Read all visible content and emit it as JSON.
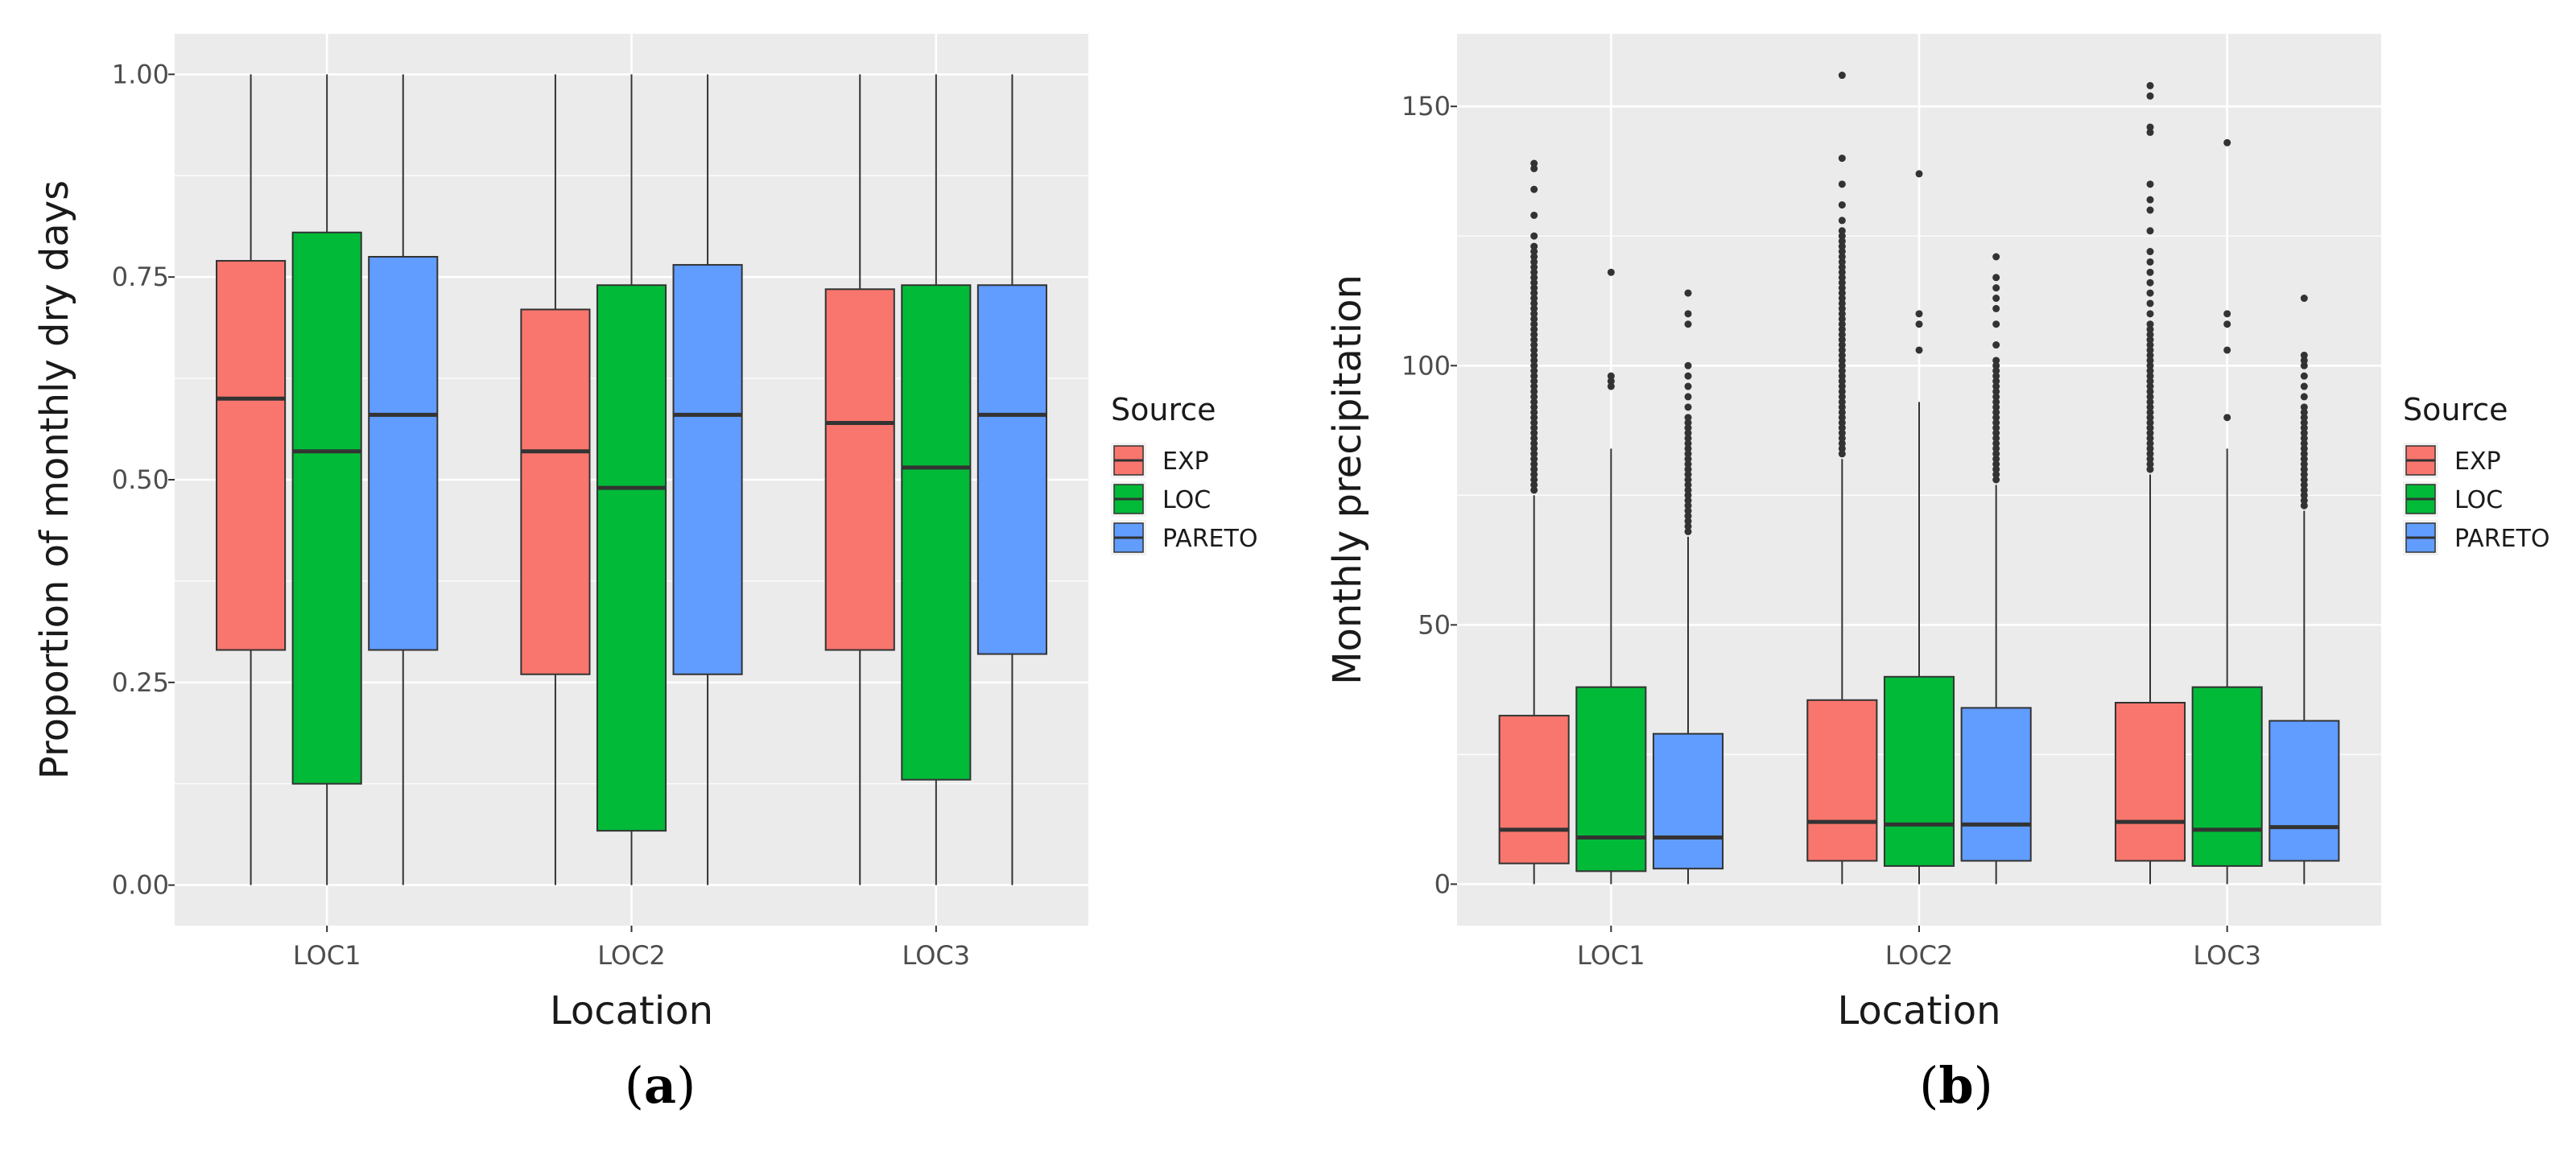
{
  "colors": {
    "panel_bg": "#ebebeb",
    "grid": "#ffffff",
    "tick_mark": "#333333",
    "median": "#333333",
    "whisker": "#333333",
    "EXP": "#f8766d",
    "LOC": "#00ba38",
    "PARETO": "#619cff"
  },
  "chart_data": [
    {
      "type": "box",
      "caption": {
        "open": "(",
        "letter": "a",
        "close": ")"
      },
      "title": "",
      "xlabel": "Location",
      "ylabel": "Proportion of monthly dry days",
      "ylim": [
        -0.05,
        1.05
      ],
      "yticks": [
        0.0,
        0.25,
        0.5,
        0.75,
        1.0
      ],
      "ytick_labels": [
        "0.00",
        "0.25",
        "0.50",
        "0.75",
        "1.00"
      ],
      "categories": [
        "LOC1",
        "LOC2",
        "LOC3"
      ],
      "legend": {
        "title": "Source",
        "position": "right",
        "entries": [
          "EXP",
          "LOC",
          "PARETO"
        ]
      },
      "series": [
        {
          "name": "EXP",
          "boxes": [
            {
              "min": 0.0,
              "q1": 0.29,
              "median": 0.6,
              "q3": 0.77,
              "max": 1.0,
              "outliers": []
            },
            {
              "min": 0.0,
              "q1": 0.26,
              "median": 0.535,
              "q3": 0.71,
              "max": 1.0,
              "outliers": []
            },
            {
              "min": 0.0,
              "q1": 0.29,
              "median": 0.57,
              "q3": 0.735,
              "max": 1.0,
              "outliers": []
            }
          ]
        },
        {
          "name": "LOC",
          "boxes": [
            {
              "min": 0.0,
              "q1": 0.125,
              "median": 0.535,
              "q3": 0.805,
              "max": 1.0,
              "outliers": []
            },
            {
              "min": 0.0,
              "q1": 0.067,
              "median": 0.49,
              "q3": 0.74,
              "max": 1.0,
              "outliers": []
            },
            {
              "min": 0.0,
              "q1": 0.13,
              "median": 0.515,
              "q3": 0.74,
              "max": 1.0,
              "outliers": []
            }
          ]
        },
        {
          "name": "PARETO",
          "boxes": [
            {
              "min": 0.0,
              "q1": 0.29,
              "median": 0.58,
              "q3": 0.775,
              "max": 1.0,
              "outliers": []
            },
            {
              "min": 0.0,
              "q1": 0.26,
              "median": 0.58,
              "q3": 0.765,
              "max": 1.0,
              "outliers": []
            },
            {
              "min": 0.0,
              "q1": 0.285,
              "median": 0.58,
              "q3": 0.74,
              "max": 1.0,
              "outliers": []
            }
          ]
        }
      ]
    },
    {
      "type": "box",
      "caption": {
        "open": "(",
        "letter": "b",
        "close": ")"
      },
      "title": "",
      "xlabel": "Location",
      "ylabel": "Monthly precipitation",
      "ylim": [
        -8,
        164
      ],
      "yticks": [
        0,
        50,
        100,
        150
      ],
      "ytick_labels": [
        "0",
        "50",
        "100",
        "150"
      ],
      "categories": [
        "LOC1",
        "LOC2",
        "LOC3"
      ],
      "legend": {
        "title": "Source",
        "position": "right",
        "entries": [
          "EXP",
          "LOC",
          "PARETO"
        ]
      },
      "series": [
        {
          "name": "EXP",
          "boxes": [
            {
              "min": 0,
              "q1": 4,
              "median": 10.5,
              "q3": 32.5,
              "max": 75,
              "outliers": [
                76,
                77,
                78,
                79,
                80,
                81,
                82,
                83,
                84,
                85,
                86,
                87,
                88,
                89,
                90,
                91,
                92,
                93,
                94,
                95,
                96,
                97,
                98,
                99,
                100,
                101,
                102,
                103,
                104,
                105,
                106,
                107,
                108,
                109,
                110,
                111,
                112,
                113,
                114,
                115,
                116,
                117,
                118,
                119,
                120,
                121,
                122,
                123,
                125,
                129,
                134,
                138,
                139
              ]
            },
            {
              "min": 0,
              "q1": 4.5,
              "median": 12,
              "q3": 35.5,
              "max": 82,
              "outliers": [
                83,
                84,
                85,
                86,
                87,
                88,
                89,
                90,
                91,
                92,
                93,
                94,
                95,
                96,
                97,
                98,
                99,
                100,
                101,
                102,
                103,
                104,
                105,
                106,
                107,
                108,
                109,
                110,
                111,
                112,
                113,
                114,
                115,
                116,
                117,
                118,
                119,
                120,
                121,
                122,
                123,
                124,
                125,
                126,
                128,
                131,
                135,
                140,
                156
              ]
            },
            {
              "min": 0,
              "q1": 4.5,
              "median": 12,
              "q3": 35,
              "max": 79,
              "outliers": [
                80,
                81,
                82,
                83,
                84,
                85,
                86,
                87,
                88,
                89,
                90,
                91,
                92,
                93,
                94,
                95,
                96,
                97,
                98,
                99,
                100,
                101,
                102,
                103,
                104,
                105,
                106,
                107,
                108,
                110,
                112,
                114,
                116,
                118,
                120,
                122,
                126,
                130,
                132,
                135,
                145,
                146,
                152,
                154
              ]
            }
          ]
        },
        {
          "name": "LOC",
          "boxes": [
            {
              "min": 0,
              "q1": 2.5,
              "median": 9,
              "q3": 38,
              "max": 84,
              "outliers": [
                96,
                97,
                98,
                118
              ]
            },
            {
              "min": 0,
              "q1": 3.5,
              "median": 11.5,
              "q3": 40,
              "max": 93,
              "outliers": [
                103,
                108,
                110,
                137
              ]
            },
            {
              "min": 0,
              "q1": 3.5,
              "median": 10.5,
              "q3": 38,
              "max": 84,
              "outliers": [
                90,
                103,
                108,
                110,
                143
              ]
            }
          ]
        },
        {
          "name": "PARETO",
          "boxes": [
            {
              "min": 0,
              "q1": 3,
              "median": 9,
              "q3": 29,
              "max": 67,
              "outliers": [
                68,
                69,
                70,
                71,
                72,
                73,
                74,
                75,
                76,
                77,
                78,
                79,
                80,
                81,
                82,
                83,
                84,
                85,
                86,
                87,
                88,
                89,
                90,
                92,
                94,
                96,
                98,
                100,
                108,
                110,
                114
              ]
            },
            {
              "min": 0,
              "q1": 4.5,
              "median": 11.5,
              "q3": 34,
              "max": 77,
              "outliers": [
                78,
                79,
                80,
                81,
                82,
                83,
                84,
                85,
                86,
                87,
                88,
                89,
                90,
                91,
                92,
                93,
                94,
                95,
                96,
                97,
                98,
                99,
                100,
                101,
                104,
                108,
                111,
                113,
                115,
                117,
                121
              ]
            },
            {
              "min": 0,
              "q1": 4.5,
              "median": 11,
              "q3": 31.5,
              "max": 72,
              "outliers": [
                73,
                74,
                75,
                76,
                77,
                78,
                79,
                80,
                81,
                82,
                83,
                84,
                85,
                86,
                87,
                88,
                89,
                90,
                91,
                92,
                94,
                96,
                98,
                100,
                101,
                102,
                113
              ]
            }
          ]
        }
      ]
    }
  ]
}
